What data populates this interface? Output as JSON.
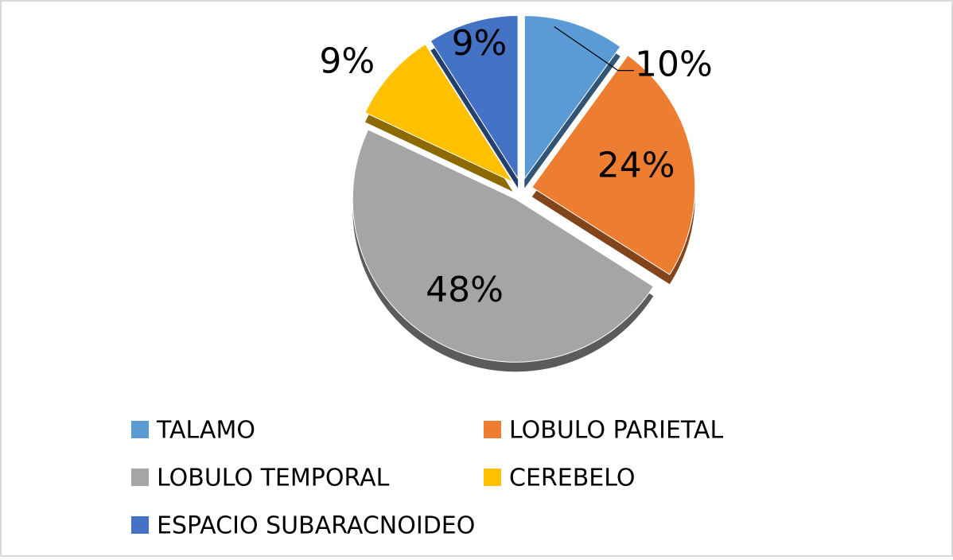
{
  "chart_data": {
    "type": "pie",
    "categories": [
      "TALAMO",
      "LOBULO PARIETAL",
      "LOBULO TEMPORAL",
      "CEREBELO",
      "ESPACIO SUBARACNOIDEO"
    ],
    "values": [
      10,
      24,
      48,
      9,
      9
    ],
    "value_labels": [
      "10%",
      "24%",
      "48%",
      "9%",
      "9%"
    ],
    "colors": [
      "#5b9bd5",
      "#ed7d31",
      "#a5a5a5",
      "#ffc000",
      "#4472c4"
    ],
    "legend": "bottom"
  }
}
